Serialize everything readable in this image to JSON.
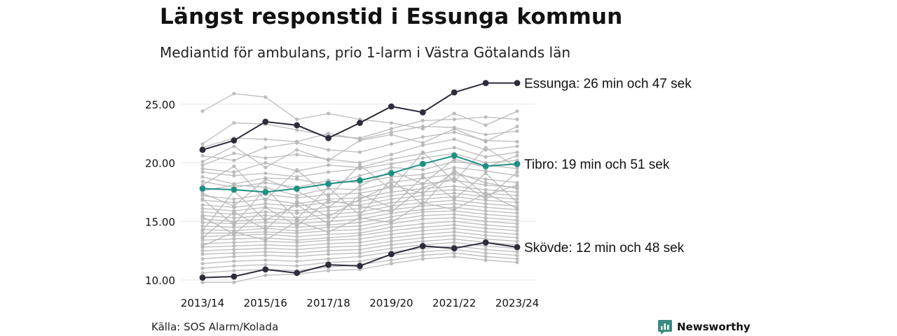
{
  "title": "Längst responstid i Essunga kommun",
  "subtitle": "Mediantid för ambulans, prio 1-larm i Västra Götalands län",
  "source": "Källa: SOS Alarm/Kolada",
  "brand": {
    "name": "Newsworthy",
    "icon": "newsworthy-logo-icon",
    "color": "#3d8a82"
  },
  "colors": {
    "highlight_dark": "#2e2c3a",
    "highlight_teal": "#1f8f81",
    "background_line": "#b5b5b5",
    "grid": "#e6e6e6"
  },
  "chart_data": {
    "type": "line",
    "x": [
      "2013/14",
      "2014/15",
      "2015/16",
      "2016/17",
      "2017/18",
      "2018/19",
      "2019/20",
      "2020/21",
      "2021/22",
      "2022/23",
      "2023/24"
    ],
    "x_ticks": [
      "2013/14",
      "2015/16",
      "2017/18",
      "2019/20",
      "2021/22",
      "2023/24"
    ],
    "y_ticks": [
      "10.00",
      "15.00",
      "20.00",
      "25.00"
    ],
    "ylim": [
      9.5,
      27.5
    ],
    "grid": true,
    "highlighted": [
      {
        "name": "Essunga",
        "label": "Essunga: 26 min och 47 sek",
        "color": "#2e2c3a",
        "values": [
          21.1,
          21.9,
          23.5,
          23.2,
          22.1,
          23.4,
          24.8,
          24.3,
          26.0,
          26.8,
          26.8
        ]
      },
      {
        "name": "Tibro",
        "label": "Tibro: 19 min och 51 sek",
        "color": "#1f8f81",
        "values": [
          17.8,
          17.7,
          17.5,
          17.8,
          18.2,
          18.5,
          19.1,
          19.9,
          20.6,
          19.7,
          19.9
        ]
      },
      {
        "name": "Skövde",
        "label": "Skövde: 12 min och 48 sek",
        "color": "#2e2c3a",
        "values": [
          10.2,
          10.3,
          10.9,
          10.6,
          11.3,
          11.2,
          12.2,
          12.9,
          12.7,
          13.2,
          12.8
        ]
      }
    ],
    "other_series": [
      [
        24.4,
        25.9,
        25.6,
        23.7,
        24.2,
        23.7,
        23.4,
        22.9,
        24.2,
        23.2,
        24.4
      ],
      [
        21.6,
        23.4,
        23.3,
        22.8,
        22.3,
        22.1,
        22.9,
        23.6,
        23.7,
        23.9,
        23.7
      ],
      [
        21.3,
        22.1,
        22.0,
        21.8,
        22.5,
        22.0,
        22.6,
        23.1,
        23.0,
        22.4,
        22.7
      ],
      [
        20.6,
        20.2,
        21.3,
        21.7,
        21.1,
        20.9,
        21.6,
        22.2,
        22.6,
        21.9,
        21.8
      ],
      [
        19.8,
        20.8,
        20.4,
        20.7,
        20.3,
        20.0,
        20.7,
        21.5,
        22.0,
        21.1,
        21.4
      ],
      [
        19.5,
        19.2,
        20.0,
        19.3,
        19.8,
        19.6,
        20.3,
        20.8,
        21.3,
        20.5,
        20.9
      ],
      [
        19.2,
        18.9,
        19.1,
        18.8,
        19.2,
        19.5,
        19.9,
        20.4,
        20.8,
        20.0,
        20.2
      ],
      [
        18.8,
        18.2,
        18.7,
        18.6,
        18.1,
        18.9,
        19.6,
        19.4,
        20.1,
        19.8,
        19.5
      ],
      [
        18.4,
        17.9,
        18.3,
        17.9,
        18.5,
        18.3,
        18.8,
        19.0,
        19.6,
        19.3,
        18.9
      ],
      [
        17.6,
        18.1,
        17.9,
        17.2,
        17.8,
        17.7,
        18.3,
        18.7,
        19.0,
        18.6,
        18.3
      ],
      [
        17.2,
        16.9,
        17.3,
        17.0,
        17.3,
        17.4,
        17.9,
        18.2,
        18.5,
        18.1,
        17.9
      ],
      [
        16.8,
        16.6,
        16.9,
        16.5,
        16.9,
        17.0,
        17.5,
        17.8,
        18.0,
        17.7,
        17.5
      ],
      [
        16.4,
        16.2,
        16.5,
        16.3,
        16.6,
        16.7,
        17.2,
        17.5,
        17.7,
        17.4,
        17.2
      ],
      [
        16.1,
        15.9,
        16.2,
        15.9,
        16.2,
        16.4,
        16.9,
        17.2,
        17.4,
        17.1,
        16.9
      ],
      [
        15.8,
        15.6,
        15.8,
        15.7,
        15.9,
        16.1,
        16.6,
        16.9,
        17.1,
        16.8,
        16.6
      ],
      [
        15.5,
        15.3,
        15.5,
        15.3,
        15.6,
        15.8,
        16.3,
        16.6,
        16.8,
        16.5,
        16.3
      ],
      [
        15.2,
        15.0,
        15.2,
        15.1,
        15.3,
        15.5,
        16.0,
        16.3,
        16.5,
        16.2,
        16.0
      ],
      [
        14.9,
        14.8,
        14.9,
        14.8,
        15.0,
        15.2,
        15.7,
        16.0,
        16.2,
        15.9,
        15.7
      ],
      [
        14.6,
        14.5,
        14.6,
        14.5,
        14.7,
        14.9,
        15.4,
        15.8,
        15.9,
        15.6,
        15.4
      ],
      [
        14.3,
        14.2,
        14.4,
        14.2,
        14.5,
        14.6,
        15.1,
        15.5,
        15.6,
        15.3,
        15.1
      ],
      [
        14.0,
        14.0,
        14.1,
        14.0,
        14.2,
        14.3,
        14.8,
        15.2,
        15.3,
        15.0,
        14.8
      ],
      [
        13.7,
        13.8,
        13.9,
        13.7,
        13.9,
        14.0,
        14.5,
        14.8,
        15.0,
        14.7,
        14.5
      ],
      [
        13.4,
        13.5,
        13.6,
        13.4,
        13.6,
        13.8,
        14.2,
        14.5,
        14.7,
        14.4,
        14.2
      ],
      [
        13.1,
        13.2,
        13.3,
        13.2,
        13.4,
        13.5,
        13.9,
        14.2,
        14.4,
        14.1,
        13.9
      ],
      [
        12.8,
        12.9,
        13.0,
        12.9,
        13.1,
        13.2,
        13.6,
        13.9,
        14.1,
        13.8,
        13.6
      ],
      [
        12.5,
        12.6,
        12.7,
        12.6,
        12.8,
        12.9,
        13.3,
        13.6,
        13.8,
        13.5,
        13.3
      ],
      [
        12.2,
        12.3,
        12.4,
        12.3,
        12.5,
        12.6,
        13.0,
        13.3,
        13.5,
        13.2,
        13.0
      ],
      [
        11.8,
        12.0,
        12.1,
        12.0,
        12.2,
        12.3,
        12.7,
        13.0,
        13.2,
        12.9,
        12.7
      ],
      [
        11.4,
        11.6,
        11.7,
        11.6,
        11.8,
        12.0,
        12.4,
        12.7,
        12.9,
        12.6,
        12.4
      ],
      [
        11.0,
        11.2,
        11.3,
        11.2,
        11.5,
        11.6,
        12.1,
        12.4,
        12.6,
        12.3,
        12.1
      ],
      [
        10.6,
        10.8,
        10.9,
        10.8,
        11.1,
        11.3,
        11.7,
        12.1,
        12.3,
        12.0,
        11.8
      ],
      [
        9.8,
        9.8,
        10.4,
        10.5,
        10.8,
        10.9,
        11.4,
        11.8,
        12.0,
        11.7,
        11.5
      ],
      [
        14.2,
        17.6,
        15.1,
        16.4,
        14.8,
        17.3,
        16.2,
        18.8,
        16.9,
        19.1,
        16.6
      ],
      [
        16.9,
        14.7,
        17.8,
        15.2,
        17.9,
        15.5,
        18.6,
        16.4,
        19.4,
        17.2,
        18.1
      ],
      [
        18.1,
        19.7,
        16.8,
        19.4,
        17.1,
        19.8,
        17.7,
        20.9,
        18.4,
        21.3,
        19.6
      ],
      [
        13.6,
        15.8,
        14.3,
        16.7,
        15.4,
        16.9,
        18.1,
        17.4,
        19.2,
        18.3,
        17.8
      ],
      [
        15.4,
        13.9,
        16.2,
        14.6,
        16.8,
        16.3,
        15.8,
        17.9,
        18.7,
        16.9,
        19.2
      ],
      [
        20.1,
        21.4,
        19.6,
        21.1,
        20.2,
        21.9,
        22.4,
        21.7,
        22.9,
        21.8,
        23.1
      ],
      [
        12.9,
        14.1,
        13.4,
        15.0,
        14.1,
        15.3,
        14.9,
        16.6,
        16.0,
        17.4,
        16.1
      ],
      [
        17.4,
        16.3,
        18.6,
        17.6,
        16.2,
        18.0,
        19.3,
        18.2,
        20.3,
        19.6,
        20.6
      ]
    ]
  }
}
